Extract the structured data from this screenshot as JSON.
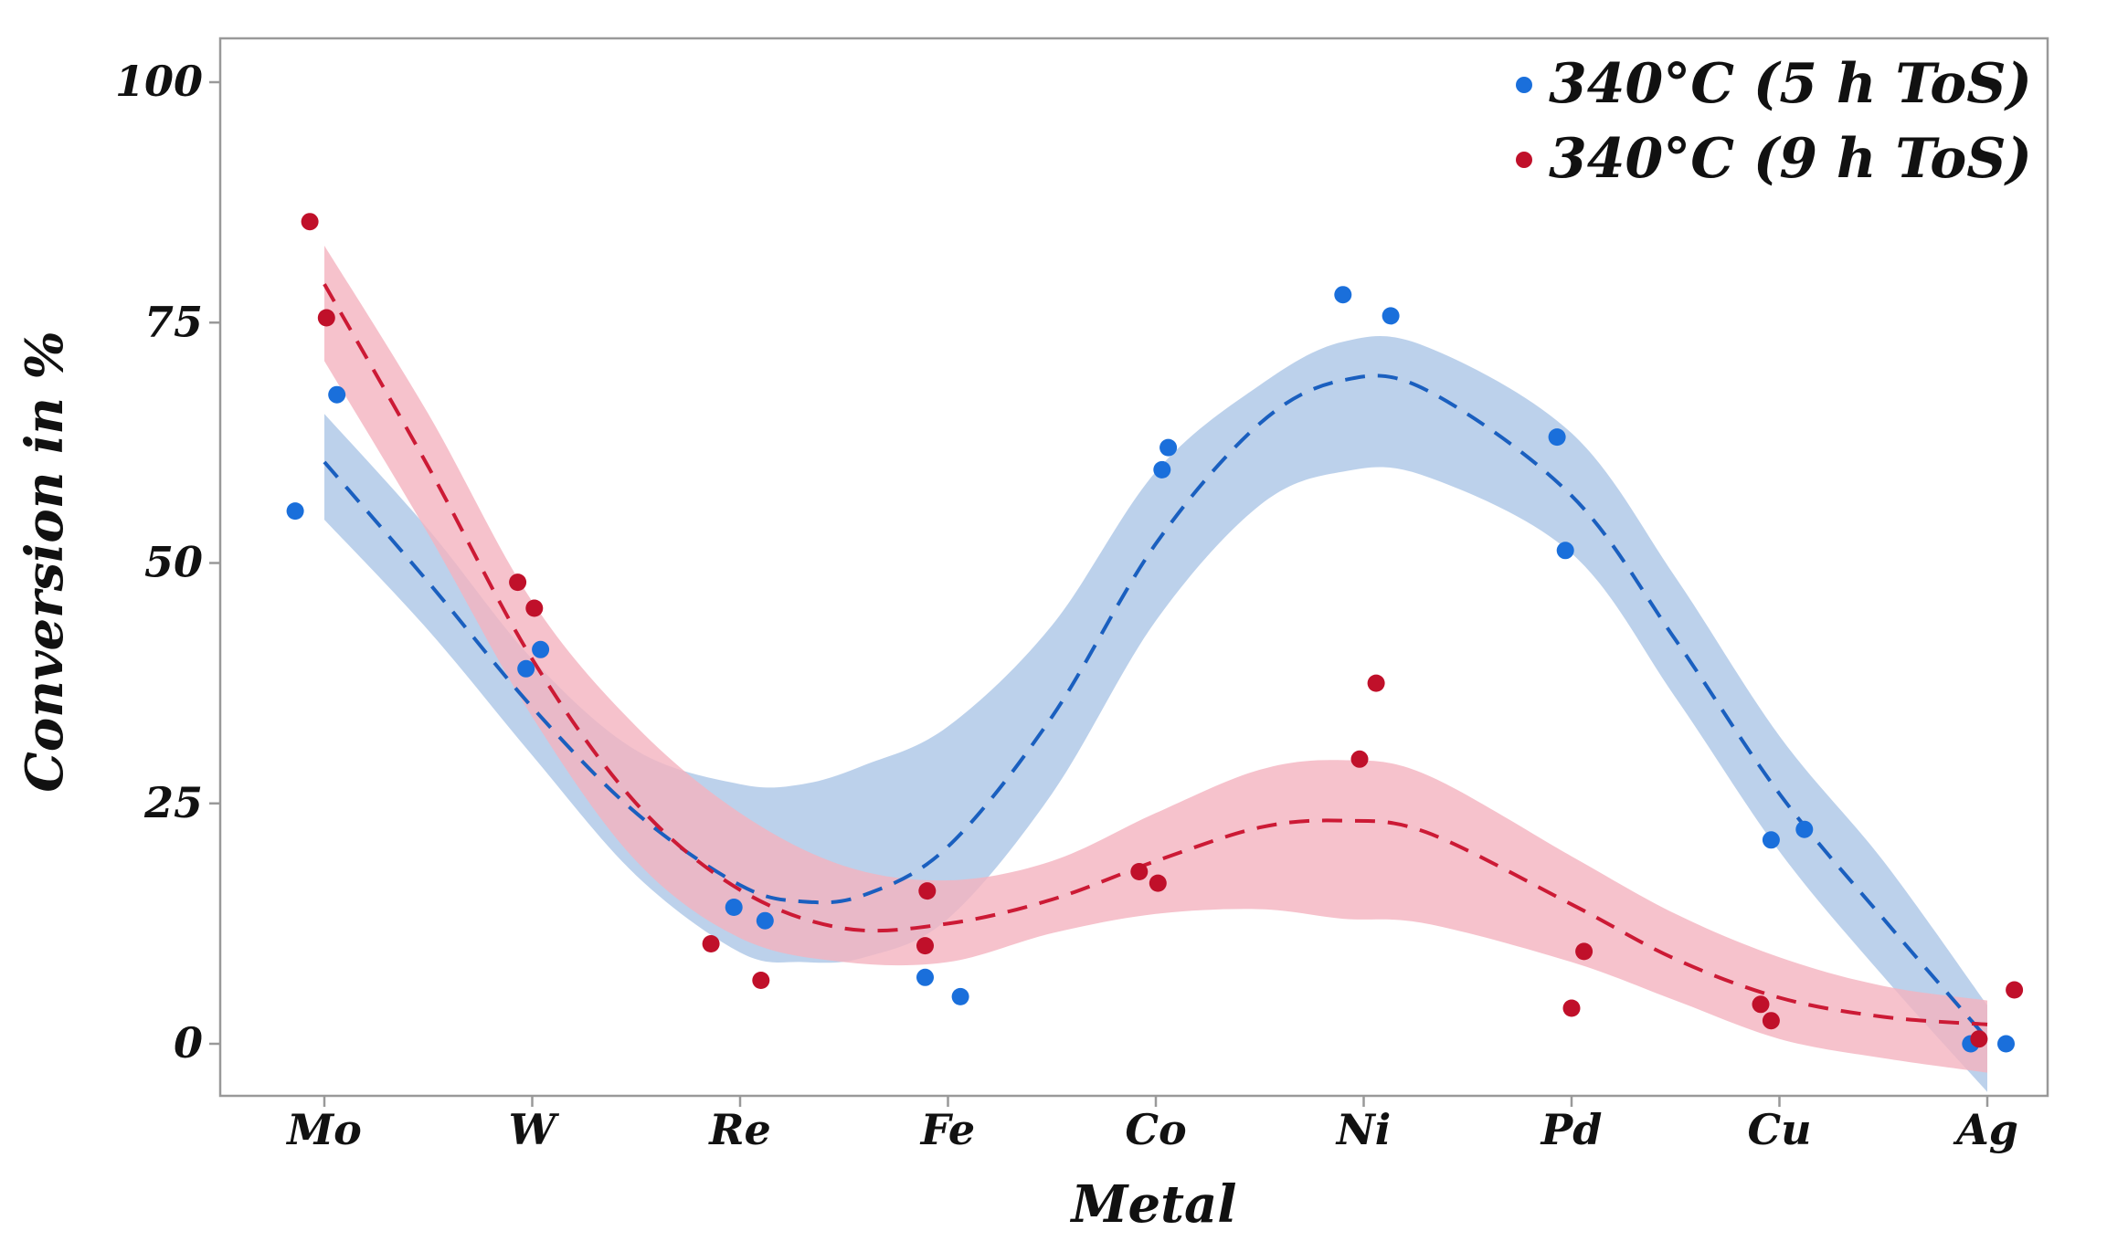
{
  "chart_data": {
    "type": "scatter",
    "title": "",
    "xlabel": "Metal",
    "ylabel": "Conversion in %",
    "categories": [
      "Mo",
      "W",
      "Re",
      "Fe",
      "Co",
      "Ni",
      "Pd",
      "Cu",
      "Ag"
    ],
    "ylim": [
      -5,
      105
    ],
    "yticks": [
      0,
      25,
      50,
      75,
      100
    ],
    "grid": false,
    "legend_position": "top-right",
    "series": [
      {
        "name": "340°C (5 h ToS)",
        "color": "#1a6fdb",
        "band_color": "#b8cfea",
        "line_color": "#1a5fbf",
        "points": [
          {
            "x": 0.86,
            "y": 55.4
          },
          {
            "x": 1.06,
            "y": 67.5
          },
          {
            "x": 1.97,
            "y": 39.0
          },
          {
            "x": 2.04,
            "y": 41.0
          },
          {
            "x": 2.97,
            "y": 14.2
          },
          {
            "x": 3.12,
            "y": 12.8
          },
          {
            "x": 3.89,
            "y": 6.9
          },
          {
            "x": 4.06,
            "y": 4.9
          },
          {
            "x": 5.03,
            "y": 59.7
          },
          {
            "x": 5.06,
            "y": 62.0
          },
          {
            "x": 5.9,
            "y": 77.9
          },
          {
            "x": 6.13,
            "y": 75.7
          },
          {
            "x": 6.93,
            "y": 63.1
          },
          {
            "x": 6.97,
            "y": 51.3
          },
          {
            "x": 7.96,
            "y": 21.2
          },
          {
            "x": 8.12,
            "y": 22.3
          },
          {
            "x": 8.92,
            "y": 0.0
          },
          {
            "x": 9.09,
            "y": 0.0
          }
        ],
        "fit": [
          {
            "x": 1.0,
            "y": 60.5
          },
          {
            "x": 1.5,
            "y": 48.0
          },
          {
            "x": 2.0,
            "y": 35.0
          },
          {
            "x": 2.5,
            "y": 24.0
          },
          {
            "x": 3.0,
            "y": 16.5
          },
          {
            "x": 3.3,
            "y": 14.8
          },
          {
            "x": 3.6,
            "y": 15.5
          },
          {
            "x": 4.0,
            "y": 20.5
          },
          {
            "x": 4.5,
            "y": 34.0
          },
          {
            "x": 5.0,
            "y": 52.0
          },
          {
            "x": 5.5,
            "y": 64.5
          },
          {
            "x": 5.9,
            "y": 69.0
          },
          {
            "x": 6.3,
            "y": 68.0
          },
          {
            "x": 7.0,
            "y": 57.0
          },
          {
            "x": 7.5,
            "y": 42.0
          },
          {
            "x": 8.0,
            "y": 26.0
          },
          {
            "x": 8.5,
            "y": 13.0
          },
          {
            "x": 9.0,
            "y": 0.5
          }
        ],
        "band": [
          {
            "x": 1.0,
            "lo": 54.5,
            "hi": 65.5
          },
          {
            "x": 1.5,
            "lo": 43.0,
            "hi": 53.5
          },
          {
            "x": 2.0,
            "lo": 30.0,
            "hi": 40.0
          },
          {
            "x": 2.5,
            "lo": 17.5,
            "hi": 30.5
          },
          {
            "x": 3.0,
            "lo": 9.5,
            "hi": 27.0
          },
          {
            "x": 3.3,
            "lo": 8.5,
            "hi": 27.0
          },
          {
            "x": 3.6,
            "lo": 9.0,
            "hi": 29.0
          },
          {
            "x": 4.0,
            "lo": 13.0,
            "hi": 33.0
          },
          {
            "x": 4.5,
            "lo": 26.0,
            "hi": 43.5
          },
          {
            "x": 5.0,
            "lo": 44.0,
            "hi": 59.5
          },
          {
            "x": 5.5,
            "lo": 56.0,
            "hi": 68.5
          },
          {
            "x": 5.9,
            "lo": 59.5,
            "hi": 73.0
          },
          {
            "x": 6.3,
            "lo": 59.0,
            "hi": 72.5
          },
          {
            "x": 7.0,
            "lo": 51.0,
            "hi": 63.5
          },
          {
            "x": 7.5,
            "lo": 36.0,
            "hi": 48.5
          },
          {
            "x": 8.0,
            "lo": 20.0,
            "hi": 32.0
          },
          {
            "x": 8.5,
            "lo": 7.0,
            "hi": 19.0
          },
          {
            "x": 9.0,
            "lo": -5.0,
            "hi": 4.0
          }
        ]
      },
      {
        "name": "340°C (9 h ToS)",
        "color": "#c0102a",
        "band_color": "#f4b3bf",
        "line_color": "#cc1a35",
        "points": [
          {
            "x": 0.93,
            "y": 85.5
          },
          {
            "x": 1.01,
            "y": 75.5
          },
          {
            "x": 1.93,
            "y": 48.0
          },
          {
            "x": 2.01,
            "y": 45.3
          },
          {
            "x": 2.86,
            "y": 10.4
          },
          {
            "x": 3.1,
            "y": 6.6
          },
          {
            "x": 3.89,
            "y": 10.2
          },
          {
            "x": 3.9,
            "y": 15.9
          },
          {
            "x": 4.92,
            "y": 17.9
          },
          {
            "x": 5.01,
            "y": 16.7
          },
          {
            "x": 5.98,
            "y": 29.6
          },
          {
            "x": 6.06,
            "y": 37.5
          },
          {
            "x": 7.0,
            "y": 3.7
          },
          {
            "x": 7.06,
            "y": 9.6
          },
          {
            "x": 7.91,
            "y": 4.1
          },
          {
            "x": 7.96,
            "y": 2.4
          },
          {
            "x": 8.96,
            "y": 0.5
          },
          {
            "x": 9.13,
            "y": 5.6
          }
        ],
        "fit": [
          {
            "x": 1.0,
            "y": 79.0
          },
          {
            "x": 1.5,
            "y": 60.0
          },
          {
            "x": 2.0,
            "y": 40.0
          },
          {
            "x": 2.5,
            "y": 25.0
          },
          {
            "x": 3.0,
            "y": 16.0
          },
          {
            "x": 3.5,
            "y": 12.0
          },
          {
            "x": 4.0,
            "y": 12.5
          },
          {
            "x": 4.5,
            "y": 15.0
          },
          {
            "x": 5.0,
            "y": 19.0
          },
          {
            "x": 5.5,
            "y": 22.5
          },
          {
            "x": 5.9,
            "y": 23.2
          },
          {
            "x": 6.3,
            "y": 22.0
          },
          {
            "x": 7.0,
            "y": 14.5
          },
          {
            "x": 7.5,
            "y": 8.8
          },
          {
            "x": 8.0,
            "y": 4.8
          },
          {
            "x": 8.5,
            "y": 2.8
          },
          {
            "x": 9.0,
            "y": 2.0
          }
        ],
        "band": [
          {
            "x": 1.0,
            "lo": 71.0,
            "hi": 83.0
          },
          {
            "x": 1.5,
            "lo": 53.0,
            "hi": 65.5
          },
          {
            "x": 2.0,
            "lo": 34.0,
            "hi": 46.0
          },
          {
            "x": 2.5,
            "lo": 19.0,
            "hi": 33.0
          },
          {
            "x": 3.0,
            "lo": 11.0,
            "hi": 24.0
          },
          {
            "x": 3.5,
            "lo": 8.5,
            "hi": 18.5
          },
          {
            "x": 4.0,
            "lo": 8.5,
            "hi": 17.0
          },
          {
            "x": 4.5,
            "lo": 11.5,
            "hi": 19.0
          },
          {
            "x": 5.0,
            "lo": 13.5,
            "hi": 24.0
          },
          {
            "x": 5.5,
            "lo": 14.0,
            "hi": 28.5
          },
          {
            "x": 5.9,
            "lo": 13.0,
            "hi": 29.5
          },
          {
            "x": 6.3,
            "lo": 12.5,
            "hi": 28.0
          },
          {
            "x": 7.0,
            "lo": 8.5,
            "hi": 19.5
          },
          {
            "x": 7.5,
            "lo": 4.5,
            "hi": 13.5
          },
          {
            "x": 8.0,
            "lo": 0.5,
            "hi": 9.0
          },
          {
            "x": 8.5,
            "lo": -1.5,
            "hi": 6.0
          },
          {
            "x": 9.0,
            "lo": -3.0,
            "hi": 4.5
          }
        ]
      }
    ]
  }
}
